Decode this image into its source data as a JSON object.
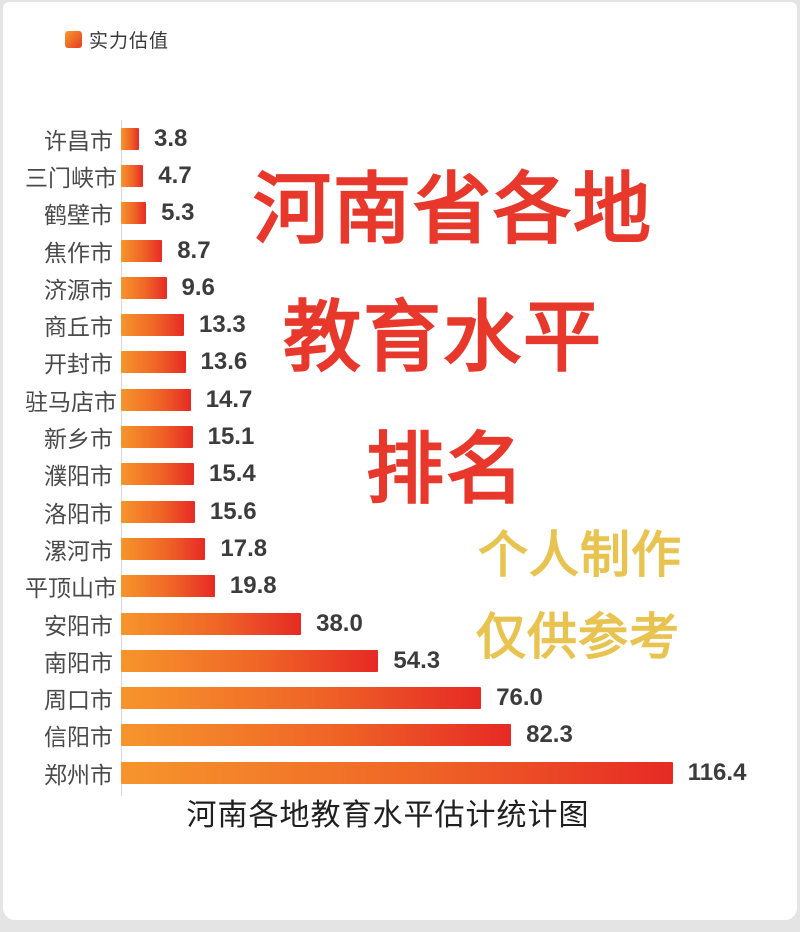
{
  "page": {
    "background": "#e4e4e4",
    "card_background": "#ffffff"
  },
  "legend": {
    "label": "实力估值",
    "swatch_gradient": [
      "#F59B2D",
      "#E63A23"
    ]
  },
  "overlay": {
    "red_color": "#E8382C",
    "red_lines": [
      "河南省各地",
      "教育水平",
      "排名"
    ],
    "yellow_color": "#E9C350",
    "yellow_lines": [
      "个人制作",
      "仅供参考"
    ]
  },
  "chart_data": {
    "type": "bar",
    "orientation": "horizontal",
    "title": "河南各地教育水平估计统计图",
    "legend_entries": [
      "实力估值"
    ],
    "legend_position": "top-left",
    "grid": false,
    "xlim": [
      0,
      120
    ],
    "bar_gradient": [
      "#F6952C",
      "#E62A25"
    ],
    "categories": [
      "许昌市",
      "三门峡市",
      "鹤壁市",
      "焦作市",
      "济源市",
      "商丘市",
      "开封市",
      "驻马店市",
      "新乡市",
      "濮阳市",
      "洛阳市",
      "漯河市",
      "平顶山市",
      "安阳市",
      "南阳市",
      "周口市",
      "信阳市",
      "郑州市"
    ],
    "values": [
      3.8,
      4.7,
      5.3,
      8.7,
      9.6,
      13.3,
      13.6,
      14.7,
      15.1,
      15.4,
      15.6,
      17.8,
      19.8,
      38.0,
      54.3,
      76.0,
      82.3,
      116.4
    ],
    "value_labels": [
      "3.8",
      "4.7",
      "5.3",
      "8.7",
      "9.6",
      "13.3",
      "13.6",
      "14.7",
      "15.1",
      "15.4",
      "15.6",
      "17.8",
      "19.8",
      "38.0",
      "54.3",
      "76.0",
      "82.3",
      "116.4"
    ],
    "rows": [
      {
        "label": "许昌市",
        "value": 3.8,
        "display": "3.8"
      },
      {
        "label": "三门峡市",
        "value": 4.7,
        "display": "4.7"
      },
      {
        "label": "鹤壁市",
        "value": 5.3,
        "display": "5.3"
      },
      {
        "label": "焦作市",
        "value": 8.7,
        "display": "8.7"
      },
      {
        "label": "济源市",
        "value": 9.6,
        "display": "9.6"
      },
      {
        "label": "商丘市",
        "value": 13.3,
        "display": "13.3"
      },
      {
        "label": "开封市",
        "value": 13.6,
        "display": "13.6"
      },
      {
        "label": "驻马店市",
        "value": 14.7,
        "display": "14.7"
      },
      {
        "label": "新乡市",
        "value": 15.1,
        "display": "15.1"
      },
      {
        "label": "濮阳市",
        "value": 15.4,
        "display": "15.4"
      },
      {
        "label": "洛阳市",
        "value": 15.6,
        "display": "15.6"
      },
      {
        "label": "漯河市",
        "value": 17.8,
        "display": "17.8"
      },
      {
        "label": "平顶山市",
        "value": 19.8,
        "display": "19.8"
      },
      {
        "label": "安阳市",
        "value": 38.0,
        "display": "38.0"
      },
      {
        "label": "南阳市",
        "value": 54.3,
        "display": "54.3"
      },
      {
        "label": "周口市",
        "value": 76.0,
        "display": "76.0"
      },
      {
        "label": "信阳市",
        "value": 82.3,
        "display": "82.3"
      },
      {
        "label": "郑州市",
        "value": 116.4,
        "display": "116.4"
      }
    ]
  }
}
